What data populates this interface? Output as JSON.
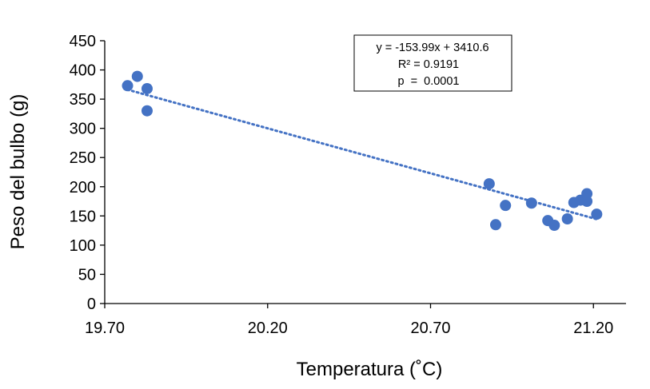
{
  "chart_data": {
    "type": "scatter",
    "title": "",
    "xlabel": "Temperatura (˚C)",
    "ylabel": "Peso del bulbo (g)",
    "xlim": [
      19.7,
      21.3
    ],
    "ylim": [
      0,
      450
    ],
    "x_ticks": [
      19.7,
      20.2,
      20.7,
      21.2
    ],
    "x_tick_labels": [
      "19.70",
      "20.20",
      "20.70",
      "21.20"
    ],
    "y_ticks": [
      0,
      50,
      100,
      150,
      200,
      250,
      300,
      350,
      400,
      450
    ],
    "y_tick_labels": [
      "0",
      "50",
      "100",
      "150",
      "200",
      "250",
      "300",
      "350",
      "400",
      "450"
    ],
    "grid": false,
    "series": [
      {
        "name": "Peso del bulbo",
        "color": "#4472C4",
        "points": [
          {
            "x": 19.77,
            "y": 373
          },
          {
            "x": 19.8,
            "y": 389
          },
          {
            "x": 19.83,
            "y": 368
          },
          {
            "x": 19.83,
            "y": 330
          },
          {
            "x": 20.88,
            "y": 205
          },
          {
            "x": 20.9,
            "y": 135
          },
          {
            "x": 20.93,
            "y": 168
          },
          {
            "x": 21.01,
            "y": 172
          },
          {
            "x": 21.06,
            "y": 142
          },
          {
            "x": 21.08,
            "y": 134
          },
          {
            "x": 21.12,
            "y": 145
          },
          {
            "x": 21.14,
            "y": 173
          },
          {
            "x": 21.16,
            "y": 177
          },
          {
            "x": 21.18,
            "y": 175
          },
          {
            "x": 21.18,
            "y": 188
          },
          {
            "x": 21.21,
            "y": 153
          }
        ]
      }
    ],
    "trendline": {
      "type": "linear",
      "slope": -153.99,
      "intercept": 3410.6,
      "x_range": [
        19.77,
        21.21
      ],
      "color": "#4472C4",
      "style": "dotted"
    },
    "annotation": {
      "lines": [
        "y = -153.99x + 3410.6",
        "R² = 0.9191",
        "p  =  0.0001"
      ],
      "placement": "top-right"
    }
  }
}
